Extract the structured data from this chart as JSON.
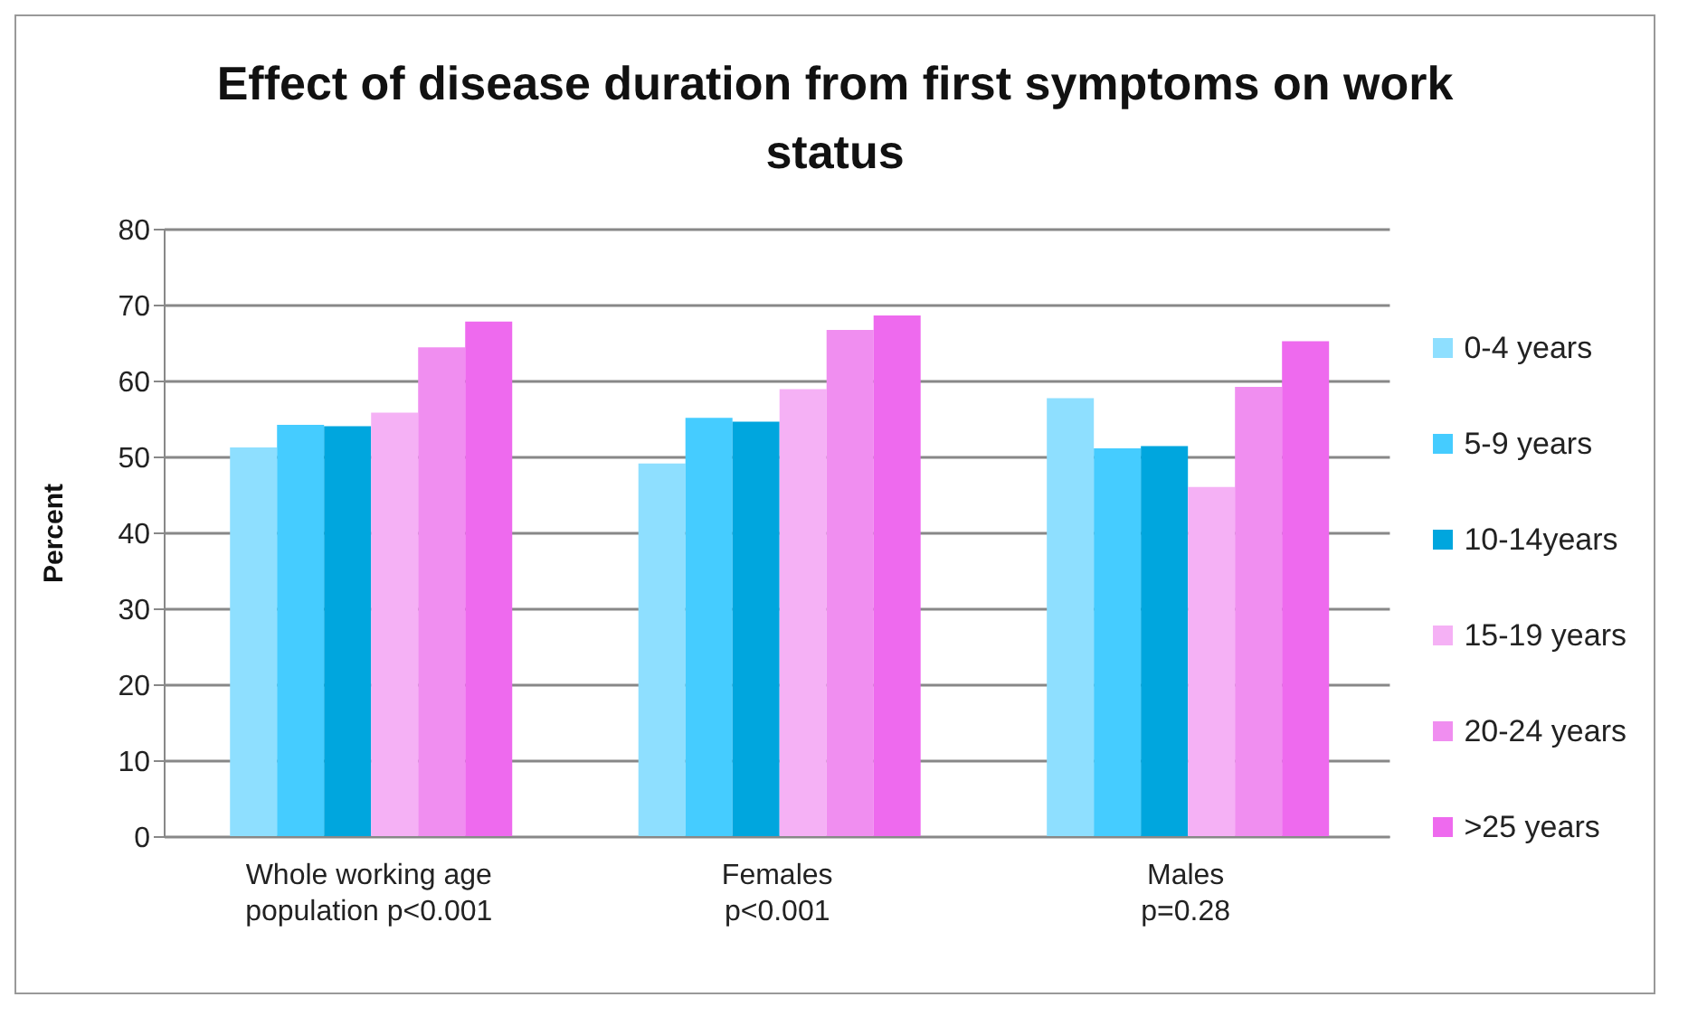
{
  "chart_data": {
    "type": "bar",
    "title": "Effect of disease duration from first symptoms on work status",
    "ylabel": "Percent",
    "categories": [
      "Whole working age\npopulation p<0.001",
      "Females\np<0.001",
      "Males\np=0.28"
    ],
    "series": [
      {
        "name": "0-4 years",
        "color": "#8edfff",
        "values": [
          51.3,
          49.2,
          57.8
        ]
      },
      {
        "name": "5-9 years",
        "color": "#45ccff",
        "values": [
          54.3,
          55.2,
          51.2
        ]
      },
      {
        "name": "10-14years",
        "color": "#00a6de",
        "values": [
          54.1,
          54.7,
          51.5
        ]
      },
      {
        "name": "15-19 years",
        "color": "#f5b1f5",
        "values": [
          55.9,
          59.0,
          46.1
        ]
      },
      {
        "name": "20-24 years",
        "color": "#f08ef0",
        "values": [
          64.5,
          66.8,
          59.3
        ]
      },
      {
        "name": ">25 years",
        "color": "#ee6aee",
        "values": [
          67.9,
          68.7,
          65.3
        ]
      }
    ],
    "ylim": [
      0,
      80
    ],
    "yticks": [
      0,
      10,
      20,
      30,
      40,
      50,
      60,
      70,
      80
    ],
    "grid": "y",
    "legend": "right"
  }
}
